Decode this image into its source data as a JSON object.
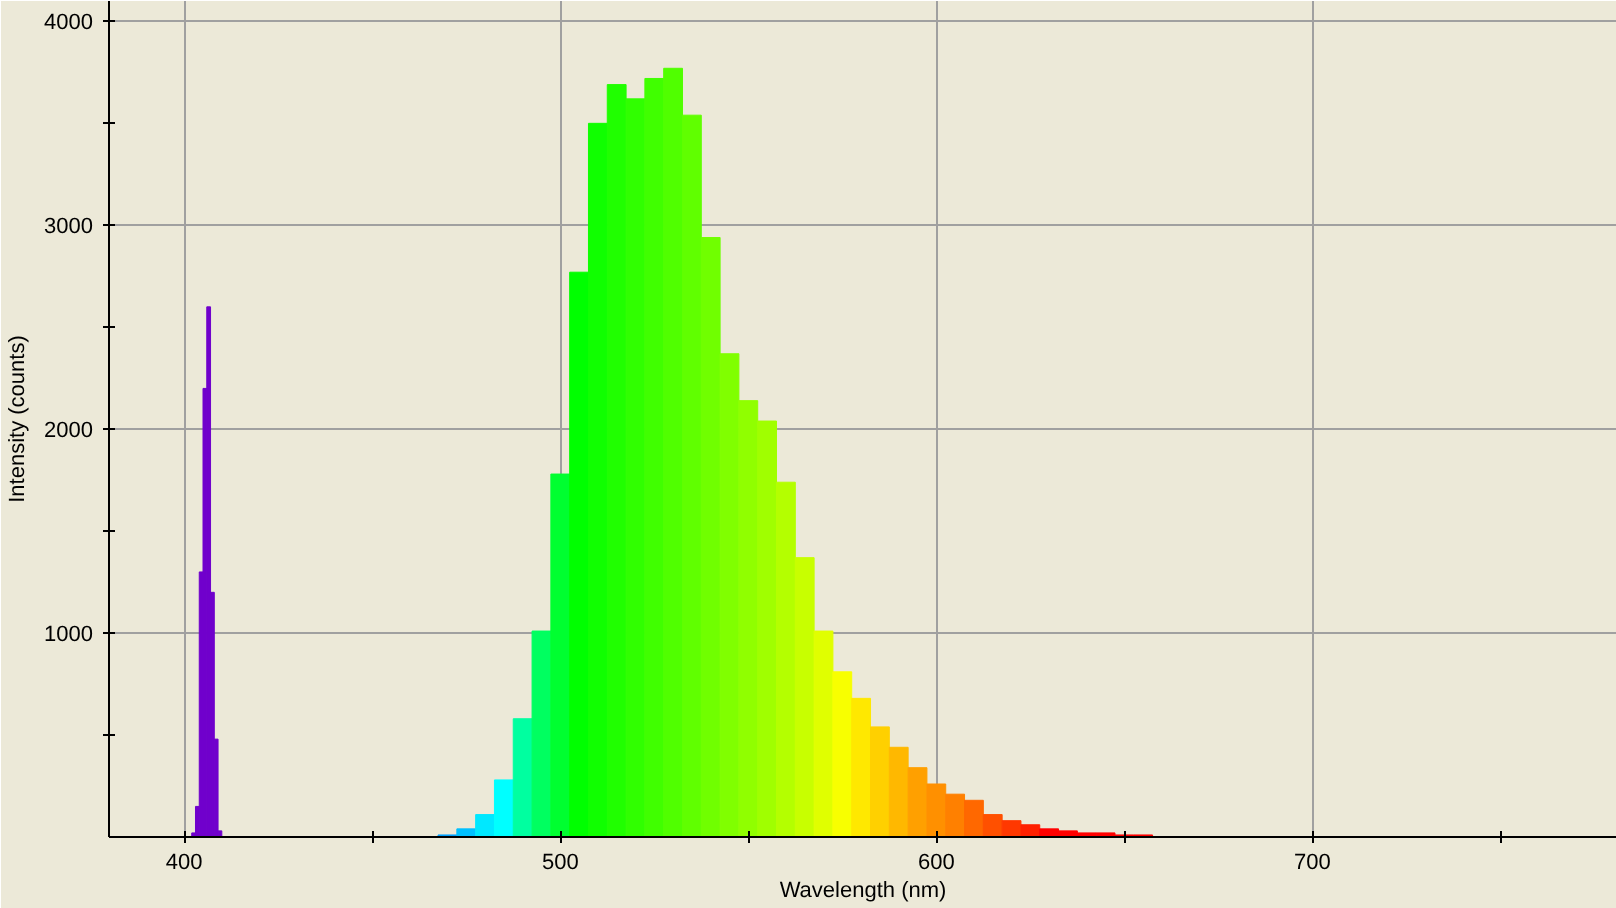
{
  "chart_data": {
    "type": "histogram",
    "xlabel": "Wavelength (nm)",
    "ylabel": "Intensity (counts)",
    "bins": [
      402,
      403,
      404,
      405,
      406,
      407,
      408,
      409,
      410,
      467.5,
      472.5,
      477.5,
      482.5,
      487.5,
      492.5,
      497.5,
      502.5,
      507.5,
      512.5,
      517.5,
      522.5,
      527.5,
      532.5,
      537.5,
      542.5,
      547.5,
      552.5,
      557.5,
      562.5,
      567.5,
      572.5,
      577.5,
      582.5,
      587.5,
      592.5,
      597.5,
      602.5,
      607.5,
      612.5,
      617.5,
      622.5,
      627.5,
      632.5,
      637.5,
      642.5,
      647.5,
      652.5,
      657.5,
      662.5,
      667.5,
      672.5
    ],
    "values": [
      20,
      150,
      1300,
      2200,
      2600,
      1200,
      480,
      30,
      0,
      10,
      40,
      110,
      280,
      580,
      1010,
      1780,
      2770,
      3500,
      3690,
      3620,
      3720,
      3770,
      3540,
      2940,
      2370,
      2140,
      2040,
      1740,
      1370,
      1010,
      810,
      680,
      540,
      440,
      340,
      260,
      210,
      180,
      110,
      80,
      60,
      40,
      30,
      20,
      20,
      10,
      10,
      0,
      0,
      0
    ],
    "colors": [
      "#7000cc",
      "#7000cc",
      "#7000cc",
      "#7000cc",
      "#7000cc",
      "#7000cc",
      "#7000cc",
      "#7000cc",
      "#7000cc",
      "#00a0ff",
      "#00c0ff",
      "#00e8ff",
      "#00ffff",
      "#00ffa0",
      "#00ff60",
      "#00ff30",
      "#00ff00",
      "#10ff00",
      "#20ff00",
      "#30ff00",
      "#40ff00",
      "#50ff00",
      "#60ff00",
      "#70ff00",
      "#80ff00",
      "#90ff00",
      "#a0ff00",
      "#b4ff00",
      "#c8ff00",
      "#e0ff00",
      "#f8ff00",
      "#ffe800",
      "#ffd000",
      "#ffb800",
      "#ffa000",
      "#ff9000",
      "#ff8000",
      "#ff6800",
      "#ff5000",
      "#ff3800",
      "#ff2000",
      "#ff0000",
      "#ff0000",
      "#ff0000",
      "#ff0000",
      "#ff0000",
      "#ff0000",
      "#ff0000",
      "#ff0000",
      "#ff0000"
    ],
    "xlim": [
      380,
      781
    ],
    "ylim": [
      0,
      4100
    ],
    "xticks": [
      400,
      {
        "value": 450,
        "label": null
      },
      500,
      {
        "value": 550,
        "label": null
      },
      600,
      {
        "value": 650,
        "label": null
      },
      700,
      {
        "value": 750,
        "label": null
      }
    ],
    "yticks": [
      {
        "value": 500,
        "label": null
      },
      1000,
      {
        "value": 1500,
        "label": null
      },
      2000,
      {
        "value": 2500,
        "label": null
      },
      3000,
      {
        "value": 3500,
        "label": null
      },
      4000
    ],
    "grid": true
  }
}
